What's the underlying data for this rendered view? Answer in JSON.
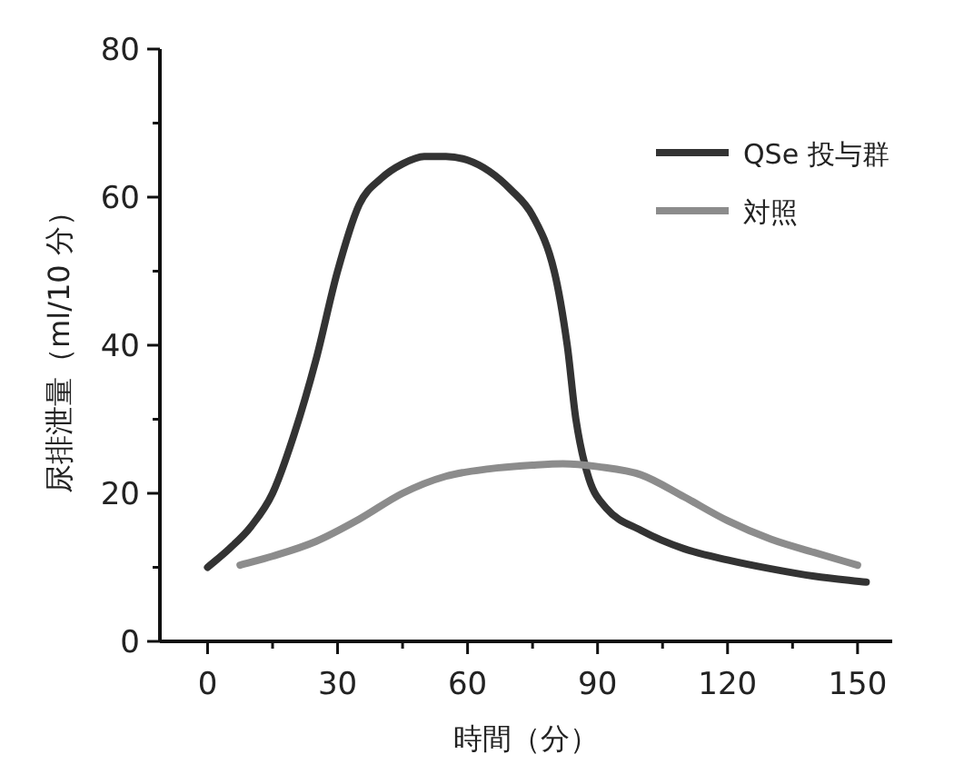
{
  "chart_data": {
    "type": "line",
    "xlabel": "時間（分）",
    "ylabel": "尿排泄量（ml/10 分）",
    "xlim": [
      -11,
      158
    ],
    "ylim": [
      0,
      80
    ],
    "xticks": [
      0,
      {
        "value": 15,
        "label": null
      },
      30,
      {
        "value": 45,
        "label": null
      },
      60,
      {
        "value": 75,
        "label": null
      },
      90,
      {
        "value": 105,
        "label": null
      },
      120,
      {
        "value": 135,
        "label": null
      },
      150
    ],
    "yticks": [
      0,
      {
        "value": 10,
        "label": null
      },
      20,
      {
        "value": 30,
        "label": null
      },
      40,
      {
        "value": 50,
        "label": null
      },
      60,
      {
        "value": 70,
        "label": null
      },
      80
    ],
    "grid": false,
    "legend": "top right",
    "marker": "none",
    "line_style": "solid",
    "series": [
      {
        "name": "QSe 投与群",
        "color": "#333333",
        "x": [
          0,
          5,
          10,
          15,
          20,
          25,
          30,
          35,
          40,
          45,
          50,
          55,
          60,
          65,
          70,
          75,
          80,
          83,
          85,
          88,
          92,
          100,
          110,
          120,
          130,
          140,
          152
        ],
        "values": [
          10,
          12.5,
          15.5,
          20,
          28,
          38,
          50,
          59,
          62.5,
          64.5,
          65.5,
          65.5,
          65,
          63.5,
          61,
          57.5,
          50,
          40,
          30,
          22,
          18,
          15,
          12.5,
          11,
          9.8,
          8.8,
          8
        ]
      },
      {
        "name": "対照",
        "color": "#8c8c8c",
        "x": [
          7.5,
          15,
          25,
          35,
          45,
          55,
          65,
          75,
          82,
          90,
          100,
          110,
          120,
          130,
          140,
          150
        ],
        "values": [
          10.3,
          11.5,
          13.5,
          16.5,
          20,
          22.3,
          23.3,
          23.8,
          24,
          23.6,
          22.5,
          19.5,
          16.3,
          13.8,
          12,
          10.3
        ]
      }
    ]
  }
}
